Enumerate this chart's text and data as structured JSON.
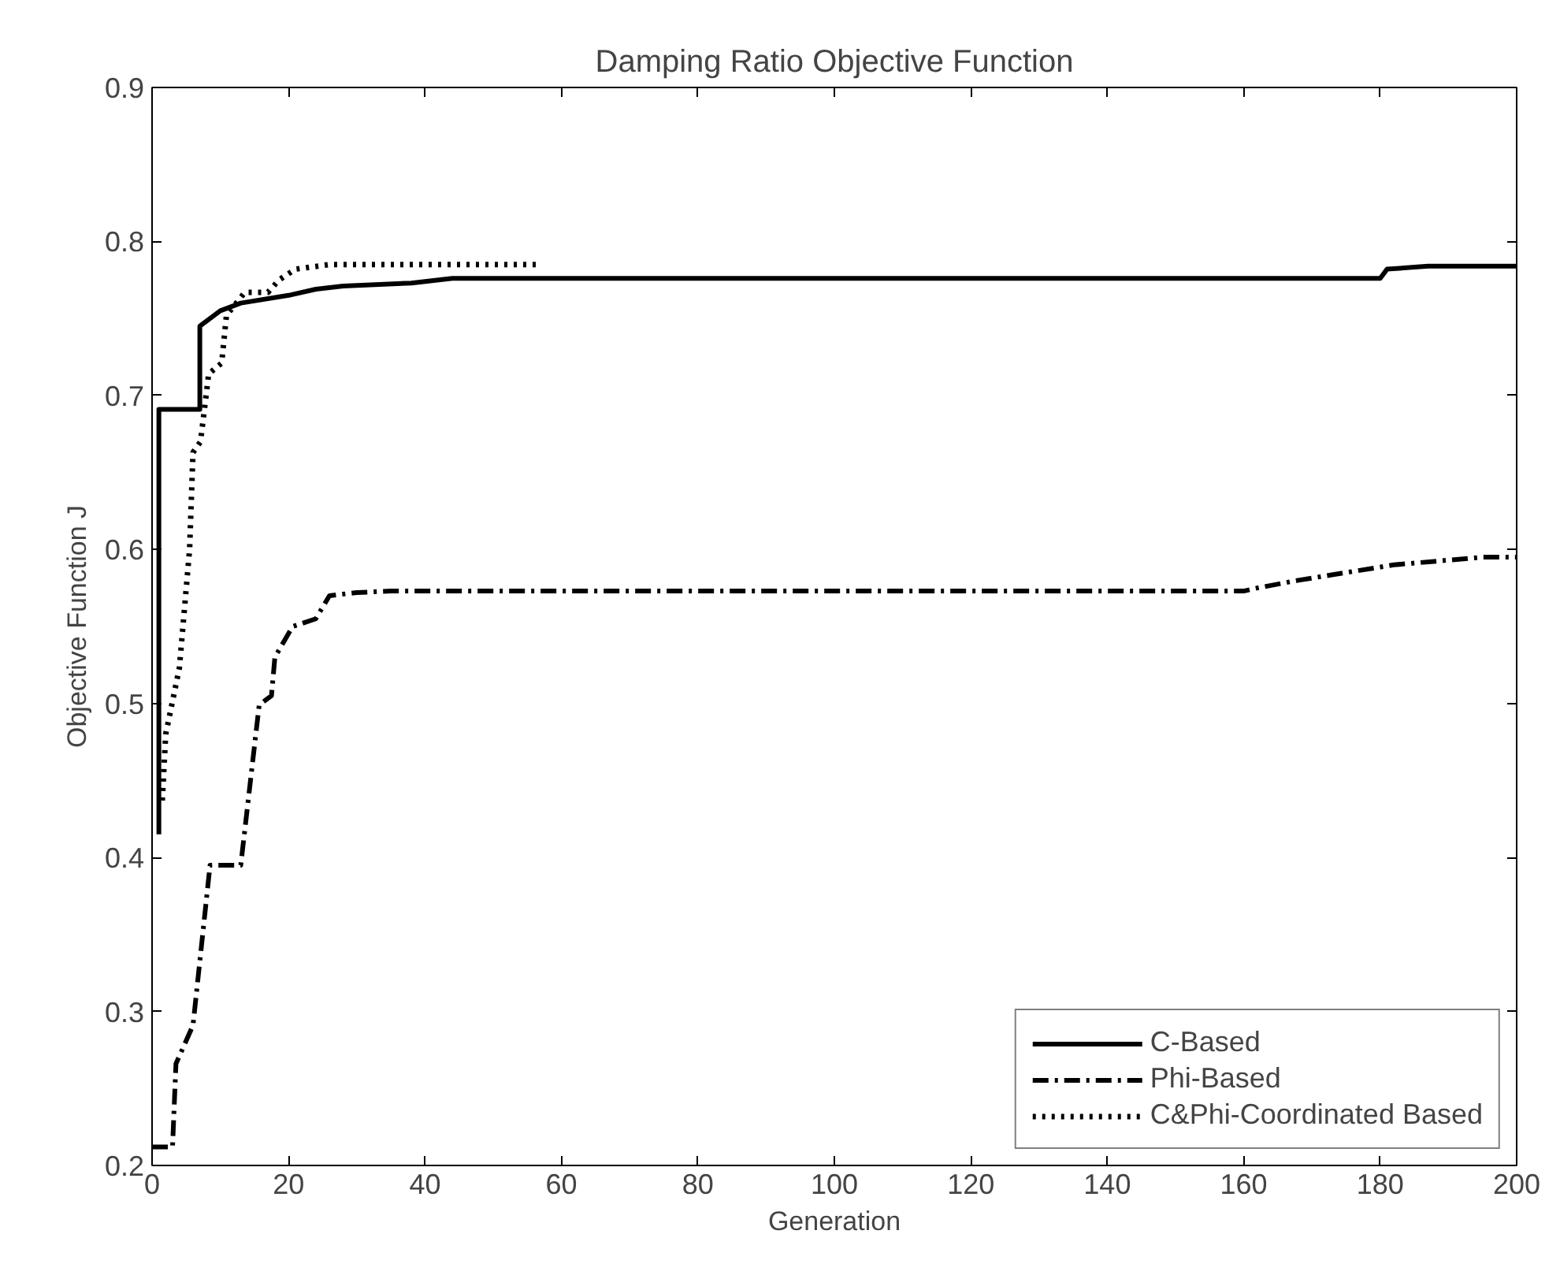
{
  "chart_data": {
    "type": "line",
    "title": "Damping Ratio Objective Function",
    "xlabel": "Generation",
    "ylabel": "Objective Function J",
    "xlim": [
      0,
      200
    ],
    "xticks": [
      0,
      20,
      40,
      60,
      80,
      100,
      120,
      140,
      160,
      180,
      200
    ],
    "ylim": [
      0.2,
      0.9
    ],
    "yticks": [
      0.2,
      0.3,
      0.4,
      0.5,
      0.6,
      0.7,
      0.8,
      0.9
    ],
    "grid": false,
    "legend": "bottom right",
    "marker": "none",
    "series": [
      {
        "name": "C-Based",
        "color": "#000000",
        "line_style": "solid",
        "x": [
          1,
          1,
          7,
          7,
          10,
          10,
          13,
          20,
          24,
          28,
          38,
          44,
          180,
          181,
          187,
          200
        ],
        "values": [
          0.415,
          0.691,
          0.691,
          0.745,
          0.755,
          0.755,
          0.76,
          0.765,
          0.769,
          0.771,
          0.773,
          0.776,
          0.776,
          0.782,
          0.784,
          0.784
        ]
      },
      {
        "name": "Phi-Based",
        "color": "#000000",
        "line_style": "dashdot",
        "x": [
          0,
          3,
          3.5,
          6,
          8.5,
          13,
          15.7,
          17.5,
          18,
          20.6,
          24,
          26,
          30,
          35,
          160,
          162,
          168,
          175,
          182,
          195,
          200
        ],
        "values": [
          0.212,
          0.212,
          0.266,
          0.291,
          0.395,
          0.395,
          0.499,
          0.505,
          0.53,
          0.55,
          0.555,
          0.57,
          0.572,
          0.573,
          0.573,
          0.575,
          0.58,
          0.585,
          0.59,
          0.595,
          0.595
        ]
      },
      {
        "name": "C&Phi-Coordinated Based",
        "color": "#000000",
        "line_style": "dotted",
        "x": [
          1.5,
          2,
          4,
          5.5,
          6,
          7.1,
          8.3,
          10.2,
          10.9,
          13.6,
          17,
          18.6,
          21,
          26,
          56.6
        ],
        "values": [
          0.437,
          0.48,
          0.523,
          0.6,
          0.663,
          0.67,
          0.714,
          0.721,
          0.752,
          0.767,
          0.767,
          0.775,
          0.782,
          0.785,
          0.785
        ]
      }
    ]
  }
}
